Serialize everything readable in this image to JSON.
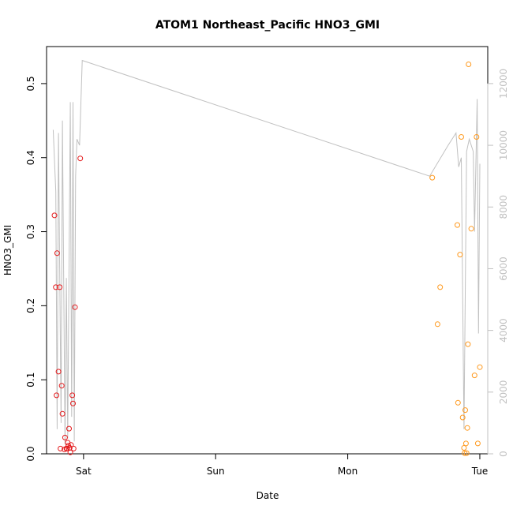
{
  "chart_data": {
    "type": "scatter",
    "title": "ATOM1 Northeast_Pacific HNO3_GMI",
    "xlabel": "Date",
    "ylabel": "HNO3_GMI",
    "x_unit": "days since Friday 00:00",
    "xlim": [
      0.72,
      4.06
    ],
    "ylim": [
      0,
      0.55
    ],
    "y2lim": [
      0,
      13200
    ],
    "x_ticks": [
      {
        "label": "Sat",
        "x": 1.0
      },
      {
        "label": "Sun",
        "x": 2.0
      },
      {
        "label": "Mon",
        "x": 3.0
      },
      {
        "label": "Tue",
        "x": 4.0
      }
    ],
    "y_ticks": [
      0.0,
      0.1,
      0.2,
      0.3,
      0.4,
      0.5
    ],
    "y_tick_labels": [
      "0.0",
      "0.1",
      "0.2",
      "0.3",
      "0.4",
      "0.5"
    ],
    "y2_ticks": [
      0,
      2000,
      4000,
      6000,
      8000,
      10000,
      12000
    ],
    "y2_tick_labels": [
      "0",
      "2000",
      "4000",
      "6000",
      "8000",
      "10000",
      "12000"
    ],
    "colors": {
      "series1": "#e41a1c",
      "series2": "#ff9a1f",
      "altitude": "#c0c0c0"
    },
    "series": [
      {
        "color": "red",
        "points": [
          [
            0.78,
            0.322
          ],
          [
            0.79,
            0.225
          ],
          [
            0.795,
            0.079
          ],
          [
            0.8,
            0.271
          ],
          [
            0.81,
            0.111
          ],
          [
            0.82,
            0.225
          ],
          [
            0.825,
            0.007
          ],
          [
            0.835,
            0.092
          ],
          [
            0.84,
            0.054
          ],
          [
            0.855,
            0.006
          ],
          [
            0.86,
            0.022
          ],
          [
            0.87,
            0.007
          ],
          [
            0.875,
            0.007
          ],
          [
            0.88,
            0.015
          ],
          [
            0.885,
            0.011
          ],
          [
            0.89,
            0.034
          ],
          [
            0.895,
            0.008
          ],
          [
            0.9,
            0.002
          ],
          [
            0.905,
            0.012
          ],
          [
            0.915,
            0.079
          ],
          [
            0.92,
            0.068
          ],
          [
            0.925,
            0.007
          ],
          [
            0.935,
            0.198
          ],
          [
            0.975,
            0.399
          ]
        ]
      },
      {
        "color": "orange",
        "points": [
          [
            3.64,
            0.373
          ],
          [
            3.68,
            0.175
          ],
          [
            3.7,
            0.225
          ],
          [
            3.83,
            0.309
          ],
          [
            3.835,
            0.069
          ],
          [
            3.85,
            0.269
          ],
          [
            3.86,
            0.428
          ],
          [
            3.87,
            0.049
          ],
          [
            3.88,
            0.008
          ],
          [
            3.885,
            0.001
          ],
          [
            3.89,
            0.059
          ],
          [
            3.895,
            0.014
          ],
          [
            3.9,
            0.001
          ],
          [
            3.905,
            0.035
          ],
          [
            3.91,
            0.148
          ],
          [
            3.915,
            0.526
          ],
          [
            3.935,
            0.304
          ],
          [
            3.96,
            0.106
          ],
          [
            3.975,
            0.428
          ],
          [
            3.985,
            0.014
          ],
          [
            4.0,
            0.117
          ]
        ]
      }
    ],
    "altitude_series": {
      "points": [
        [
          0.77,
          10500
        ],
        [
          0.79,
          8500
        ],
        [
          0.8,
          800
        ],
        [
          0.81,
          10400
        ],
        [
          0.83,
          1000
        ],
        [
          0.84,
          10800
        ],
        [
          0.86,
          300
        ],
        [
          0.87,
          5700
        ],
        [
          0.88,
          500
        ],
        [
          0.9,
          11400
        ],
        [
          0.91,
          1200
        ],
        [
          0.92,
          11400
        ],
        [
          0.93,
          400
        ],
        [
          0.94,
          9000
        ],
        [
          0.95,
          10200
        ],
        [
          0.97,
          10000
        ],
        [
          0.99,
          12750
        ],
        [
          3.62,
          9000
        ],
        [
          3.76,
          10000
        ],
        [
          3.82,
          10400
        ],
        [
          3.84,
          9300
        ],
        [
          3.86,
          9600
        ],
        [
          3.88,
          800
        ],
        [
          3.9,
          9800
        ],
        [
          3.92,
          10200
        ],
        [
          3.95,
          9800
        ],
        [
          3.96,
          7200
        ],
        [
          3.98,
          11500
        ],
        [
          3.99,
          3900
        ],
        [
          4.0,
          9400
        ]
      ]
    }
  }
}
